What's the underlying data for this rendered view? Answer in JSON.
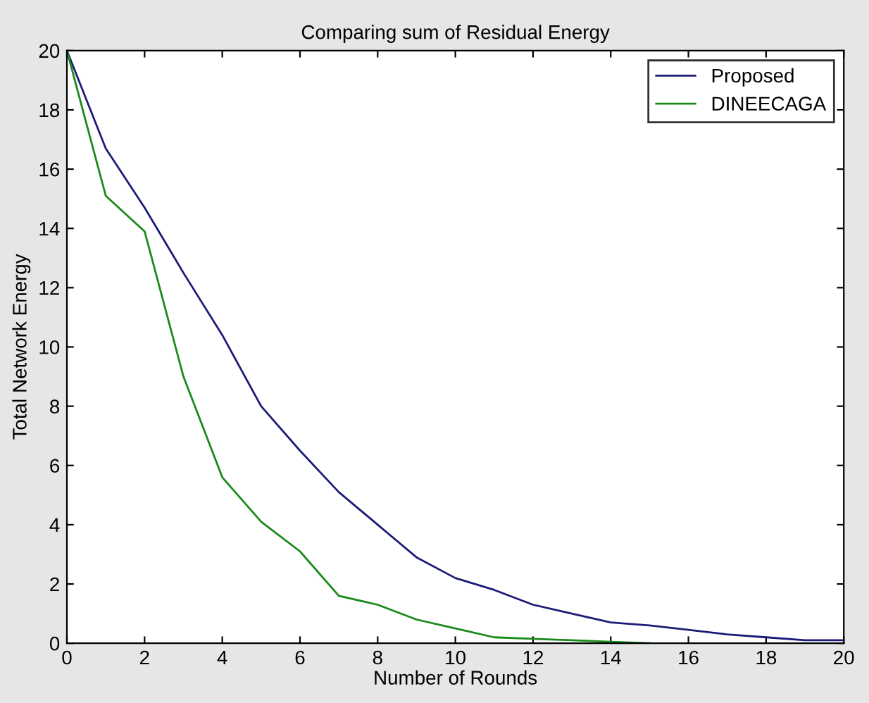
{
  "chart_data": {
    "type": "line",
    "title": "Comparing sum of Residual Energy",
    "xlabel": "Number of Rounds",
    "ylabel": "Total Network Energy",
    "x": [
      0,
      1,
      2,
      3,
      4,
      5,
      6,
      7,
      8,
      9,
      10,
      11,
      12,
      13,
      14,
      15,
      16,
      17,
      18,
      19,
      20
    ],
    "series": [
      {
        "name": "Proposed",
        "color": "#1c1c78",
        "values": [
          20,
          16.7,
          14.7,
          12.5,
          10.4,
          8.0,
          6.5,
          5.1,
          4.0,
          2.9,
          2.2,
          1.8,
          1.3,
          1.0,
          0.7,
          0.6,
          0.45,
          0.3,
          0.2,
          0.1,
          0.1
        ]
      },
      {
        "name": "DINEECAGA",
        "color": "#1a8a1a",
        "values": [
          20,
          15.1,
          13.9,
          9.0,
          5.6,
          4.1,
          3.1,
          1.6,
          1.3,
          0.8,
          0.5,
          0.2,
          0.15,
          0.1,
          0.05,
          0,
          null,
          null,
          null,
          null,
          null
        ]
      }
    ],
    "xlim": [
      0,
      20
    ],
    "xticks": [
      0,
      2,
      4,
      6,
      8,
      10,
      12,
      14,
      16,
      18,
      20
    ],
    "ylim": [
      0,
      20
    ],
    "yticks": [
      0,
      2,
      4,
      6,
      8,
      10,
      12,
      14,
      16,
      18,
      20
    ],
    "legend": "top right",
    "grid": false,
    "marker": "none",
    "line_style": "solid"
  }
}
